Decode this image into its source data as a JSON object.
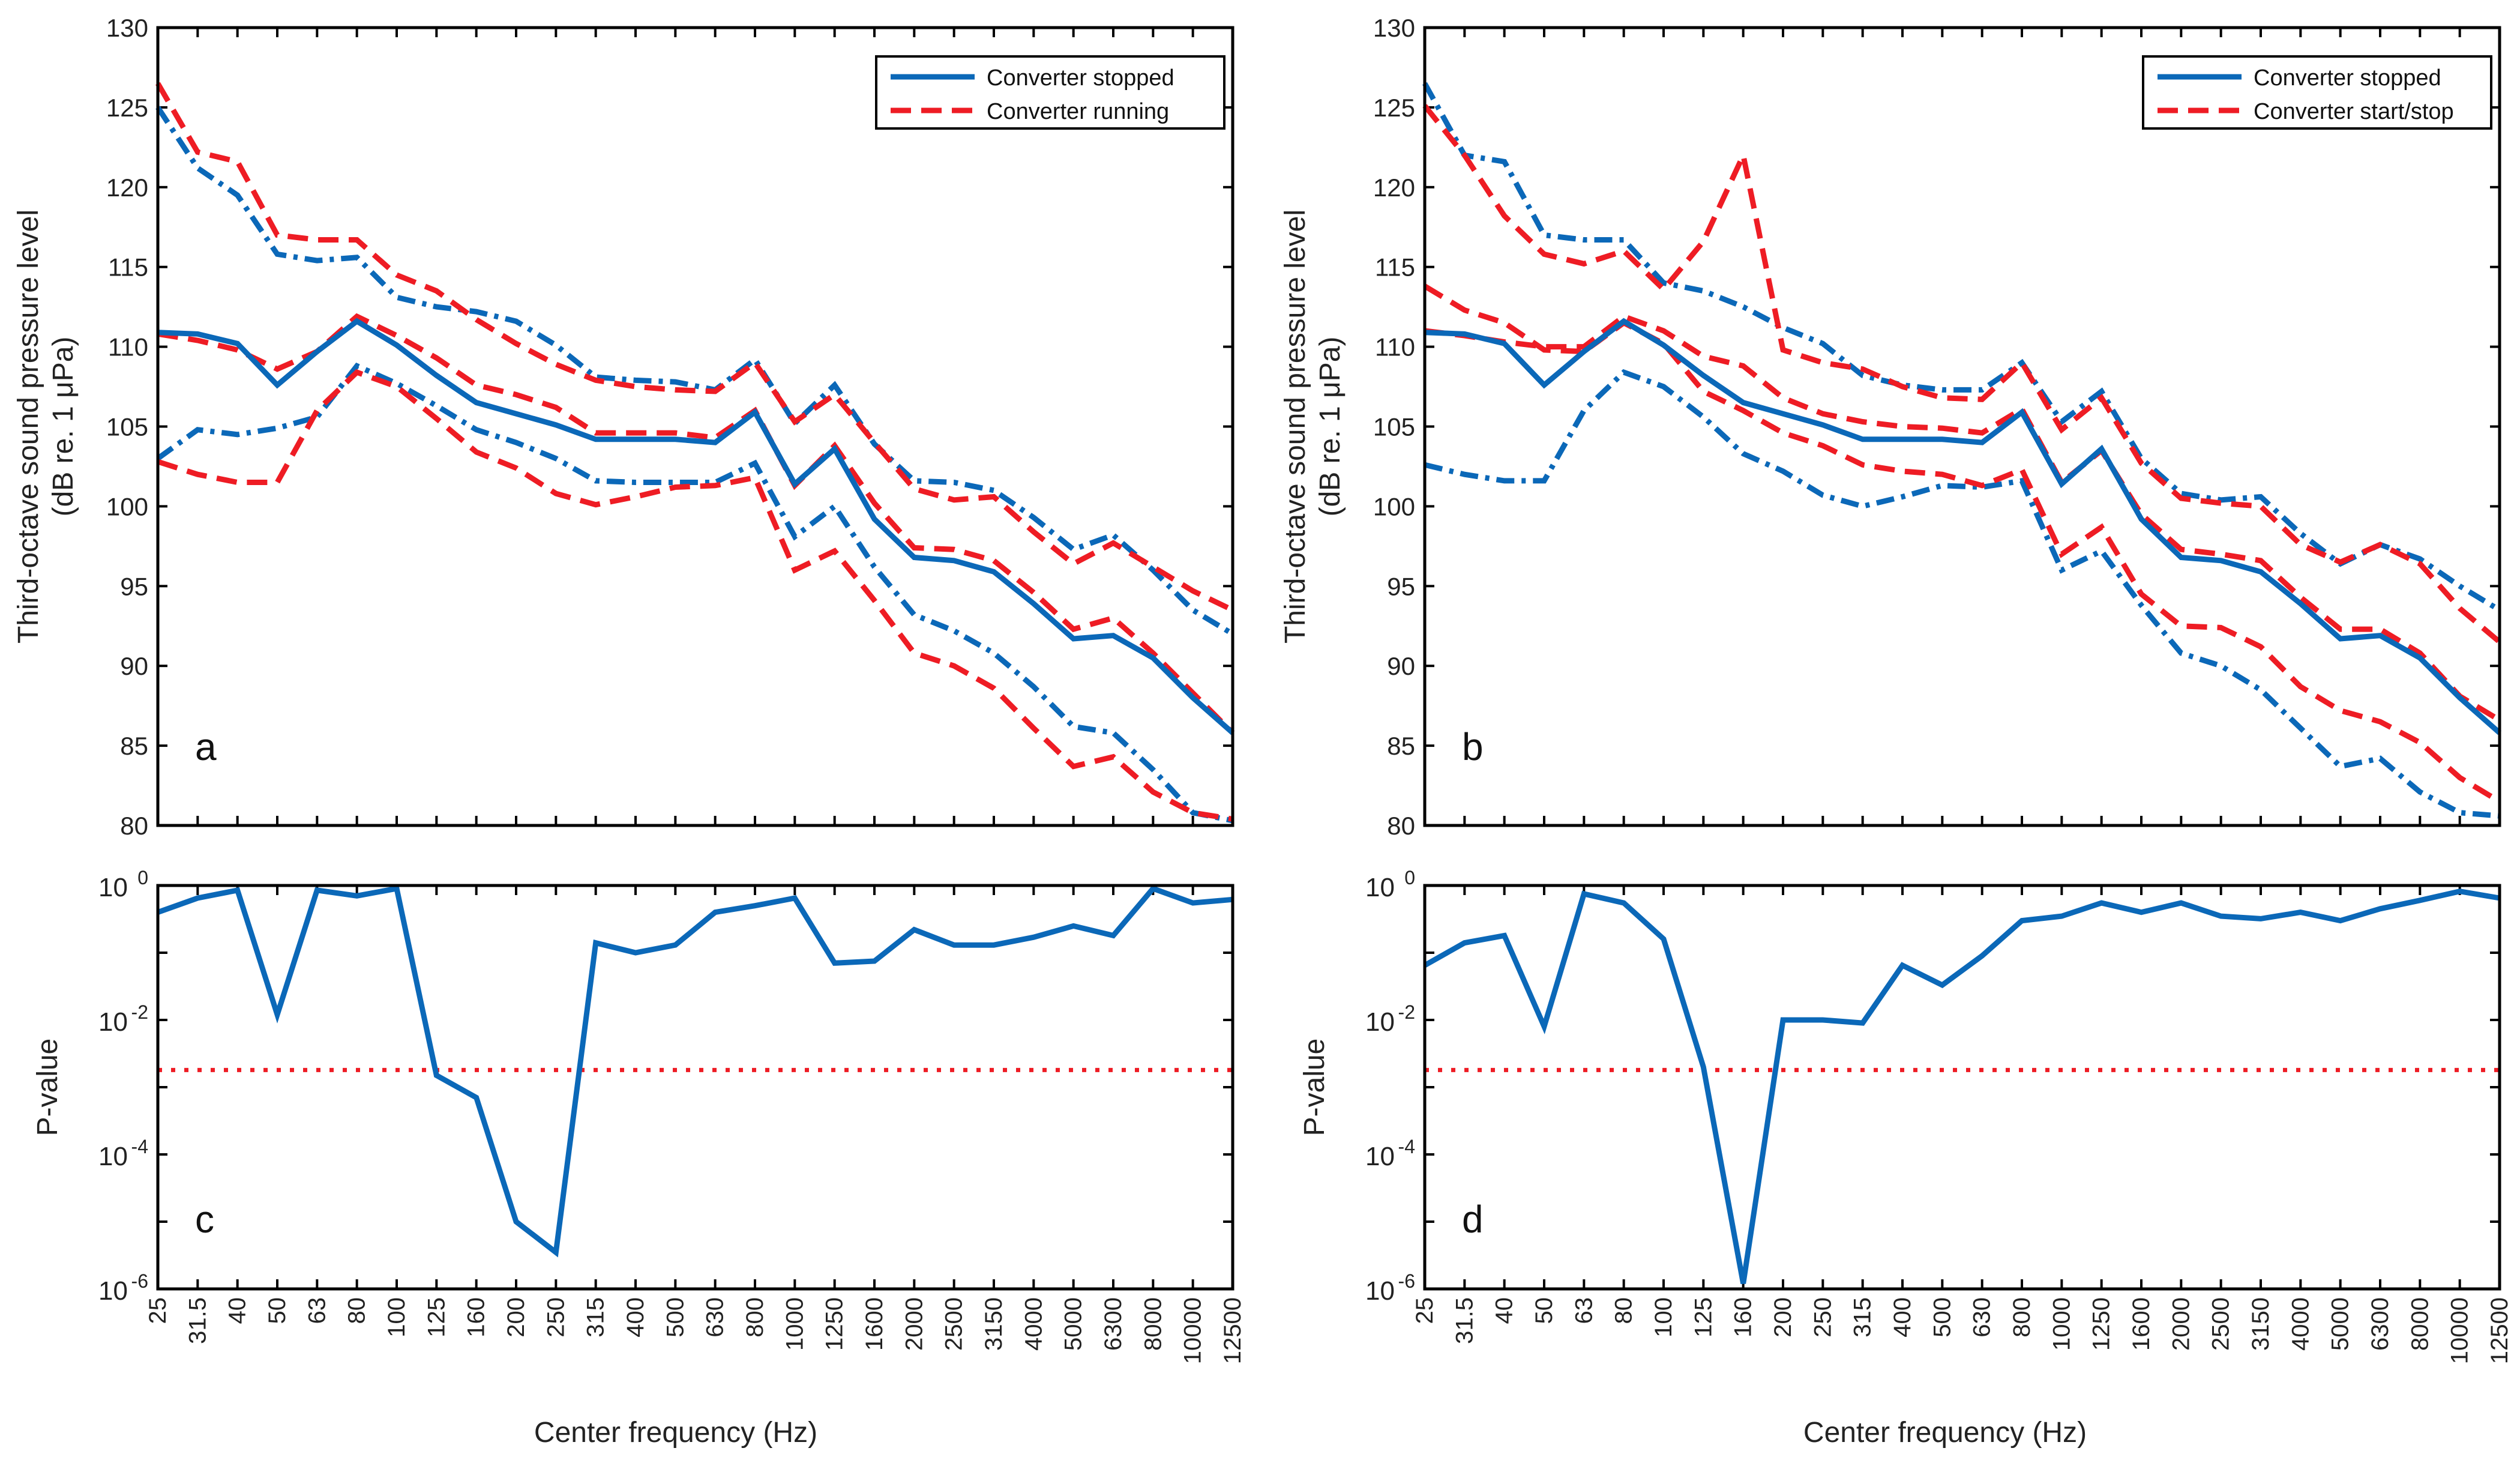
{
  "figure": {
    "xlabel": "Center frequency (Hz)",
    "ylabel_spl_line1": "Third-octave sound pressure level",
    "ylabel_spl_line2": "(dB re. 1  μPa)",
    "ylabel_p": "P-value",
    "colors": {
      "blue": "#0b68b8",
      "red": "#ee1c24",
      "axis": "#000000"
    }
  },
  "chart_data": [
    {
      "panel": "a",
      "type": "line",
      "categories": [
        "25",
        "31.5",
        "40",
        "50",
        "63",
        "80",
        "100",
        "125",
        "160",
        "200",
        "250",
        "315",
        "400",
        "500",
        "630",
        "800",
        "1000",
        "1250",
        "1600",
        "2000",
        "2500",
        "3150",
        "4000",
        "5000",
        "6300",
        "8000",
        "10000",
        "12500"
      ],
      "ylim": [
        80,
        130
      ],
      "yticks": [
        80,
        85,
        90,
        95,
        100,
        105,
        110,
        115,
        120,
        125,
        130
      ],
      "legend": {
        "position": "top-right",
        "entries": [
          {
            "label": "Converter stopped",
            "color": "#0b68b8",
            "style": "solid"
          },
          {
            "label": "Converter running",
            "color": "#ee1c24",
            "style": "dashed"
          }
        ]
      },
      "series": [
        {
          "name": "Converter stopped",
          "color": "#0b68b8",
          "style": "solid",
          "values": [
            110.9,
            110.8,
            110.2,
            107.6,
            109.7,
            111.6,
            110.1,
            108.2,
            106.5,
            105.8,
            105.1,
            104.2,
            104.2,
            104.2,
            104.0,
            105.9,
            101.4,
            103.6,
            99.2,
            96.8,
            96.6,
            95.9,
            93.9,
            91.7,
            91.9,
            90.5,
            88.0,
            85.8
          ]
        },
        {
          "color": "#0b68b8",
          "style": "dashdot",
          "values": [
            125.0,
            121.2,
            119.5,
            115.8,
            115.4,
            115.6,
            113.1,
            112.5,
            112.2,
            111.6,
            110.1,
            108.1,
            107.9,
            107.8,
            107.3,
            109.2,
            105.2,
            107.6,
            103.9,
            101.6,
            101.5,
            101.0,
            99.3,
            97.3,
            98.2,
            96.0,
            93.5,
            92.0
          ]
        },
        {
          "color": "#0b68b8",
          "style": "dashdot",
          "values": [
            103.0,
            104.8,
            104.5,
            104.9,
            105.6,
            108.8,
            107.7,
            106.3,
            104.8,
            104.0,
            103.0,
            101.6,
            101.5,
            101.5,
            101.5,
            102.7,
            98.1,
            100.0,
            96.2,
            93.2,
            92.2,
            90.8,
            88.7,
            86.2,
            85.8,
            83.5,
            80.8,
            80.3
          ]
        },
        {
          "name": "Converter running",
          "color": "#ee1c24",
          "style": "dashed",
          "values": [
            110.8,
            110.4,
            109.8,
            108.6,
            109.7,
            111.9,
            110.7,
            109.3,
            107.6,
            107.0,
            106.2,
            104.6,
            104.6,
            104.6,
            104.3,
            106.0,
            101.3,
            103.8,
            100.2,
            97.4,
            97.3,
            96.6,
            94.6,
            92.3,
            93.0,
            90.8,
            88.3,
            85.8
          ]
        },
        {
          "color": "#ee1c24",
          "style": "dashed",
          "values": [
            126.5,
            122.2,
            121.6,
            117.0,
            116.7,
            116.7,
            114.5,
            113.5,
            111.7,
            110.2,
            108.9,
            107.9,
            107.5,
            107.3,
            107.2,
            109.0,
            105.3,
            107.0,
            104.0,
            101.1,
            100.4,
            100.6,
            98.4,
            96.4,
            97.7,
            96.2,
            94.7,
            93.5
          ]
        },
        {
          "color": "#ee1c24",
          "style": "dashed",
          "values": [
            102.8,
            102.0,
            101.5,
            101.5,
            106.0,
            108.4,
            107.5,
            105.5,
            103.4,
            102.4,
            100.8,
            100.1,
            100.6,
            101.2,
            101.3,
            101.8,
            96.0,
            97.2,
            94.1,
            90.8,
            90.0,
            88.6,
            86.1,
            83.7,
            84.3,
            82.1,
            80.8,
            80.4
          ]
        }
      ]
    },
    {
      "panel": "b",
      "type": "line",
      "categories": [
        "25",
        "31.5",
        "40",
        "50",
        "63",
        "80",
        "100",
        "125",
        "160",
        "200",
        "250",
        "315",
        "400",
        "500",
        "630",
        "800",
        "1000",
        "1250",
        "1600",
        "2000",
        "2500",
        "3150",
        "4000",
        "5000",
        "6300",
        "8000",
        "10000",
        "12500"
      ],
      "ylim": [
        80,
        130
      ],
      "yticks": [
        80,
        85,
        90,
        95,
        100,
        105,
        110,
        115,
        120,
        125,
        130
      ],
      "legend": {
        "position": "top-right",
        "entries": [
          {
            "label": "Converter stopped",
            "color": "#0b68b8",
            "style": "solid"
          },
          {
            "label": "Converter start/stop",
            "color": "#ee1c24",
            "style": "dashed"
          }
        ]
      },
      "series": [
        {
          "name": "Converter stopped",
          "color": "#0b68b8",
          "style": "solid",
          "values": [
            110.9,
            110.8,
            110.2,
            107.6,
            109.7,
            111.6,
            110.1,
            108.2,
            106.5,
            105.8,
            105.1,
            104.2,
            104.2,
            104.2,
            104.0,
            105.9,
            101.4,
            103.6,
            99.2,
            96.8,
            96.6,
            95.9,
            93.9,
            91.7,
            91.9,
            90.5,
            88.0,
            85.8
          ]
        },
        {
          "color": "#0b68b8",
          "style": "dashdot",
          "values": [
            126.5,
            122.0,
            121.6,
            117.0,
            116.7,
            116.7,
            114.0,
            113.5,
            112.5,
            111.2,
            110.2,
            108.2,
            107.6,
            107.3,
            107.3,
            109.0,
            105.3,
            107.2,
            103.0,
            100.8,
            100.4,
            100.6,
            98.3,
            96.4,
            97.6,
            96.7,
            95.0,
            93.5
          ]
        },
        {
          "color": "#0b68b8",
          "style": "dashdot",
          "values": [
            102.6,
            102.0,
            101.6,
            101.6,
            106.0,
            108.4,
            107.5,
            105.6,
            103.3,
            102.2,
            100.7,
            100.0,
            100.6,
            101.3,
            101.2,
            101.6,
            96.0,
            97.2,
            93.8,
            90.8,
            90.0,
            88.5,
            86.1,
            83.7,
            84.2,
            82.1,
            80.8,
            80.6
          ]
        },
        {
          "name": "Converter start/stop",
          "color": "#ee1c24",
          "style": "dashed",
          "values": [
            111.0,
            110.7,
            110.3,
            110.0,
            110.0,
            111.9,
            111.0,
            109.4,
            108.8,
            106.8,
            105.8,
            105.3,
            105.0,
            104.9,
            104.6,
            106.1,
            101.5,
            103.5,
            99.5,
            97.3,
            97.0,
            96.6,
            94.3,
            92.3,
            92.3,
            90.8,
            88.1,
            86.6
          ]
        },
        {
          "color": "#ee1c24",
          "style": "dashed",
          "values": [
            125.1,
            122.0,
            118.2,
            115.8,
            115.2,
            116.0,
            113.6,
            116.6,
            122.0,
            109.8,
            109.0,
            108.6,
            107.5,
            106.8,
            106.7,
            109.0,
            104.8,
            106.8,
            102.7,
            100.5,
            100.2,
            100.0,
            97.6,
            96.5,
            97.6,
            96.4,
            93.6,
            91.5
          ]
        },
        {
          "color": "#ee1c24",
          "style": "dashed",
          "values": [
            113.8,
            112.3,
            111.5,
            109.8,
            109.7,
            111.5,
            110.2,
            107.2,
            106.0,
            104.6,
            103.8,
            102.6,
            102.2,
            102.0,
            101.3,
            102.3,
            97.0,
            98.7,
            94.5,
            92.5,
            92.4,
            91.2,
            88.7,
            87.2,
            86.5,
            85.2,
            83.0,
            81.5
          ]
        }
      ]
    },
    {
      "panel": "c",
      "type": "line",
      "categories": [
        "25",
        "31.5",
        "40",
        "50",
        "63",
        "80",
        "100",
        "125",
        "160",
        "200",
        "250",
        "315",
        "400",
        "500",
        "630",
        "800",
        "1000",
        "1250",
        "1600",
        "2000",
        "2500",
        "3150",
        "4000",
        "5000",
        "6300",
        "8000",
        "10000",
        "12500"
      ],
      "ylabel": "P-value",
      "yscale": "log",
      "ylim": [
        1e-06,
        1
      ],
      "yticks": [
        {
          "base": "10",
          "exp": "0",
          "value": 1
        },
        {
          "base": "10",
          "exp": "-2",
          "value": 0.01
        },
        {
          "base": "10",
          "exp": "-4",
          "value": 0.0001
        },
        {
          "base": "10",
          "exp": "-6",
          "value": 1e-06
        }
      ],
      "threshold": {
        "value": 0.0018,
        "color": "#ee1c24",
        "style": "dotted"
      },
      "series": [
        {
          "color": "#0b68b8",
          "style": "solid",
          "values": [
            0.4,
            0.65,
            0.85,
            0.012,
            0.85,
            0.7,
            0.9,
            0.0015,
            0.0007,
            1e-05,
            3.5e-06,
            0.14,
            0.1,
            0.13,
            0.4,
            0.5,
            0.65,
            0.07,
            0.075,
            0.22,
            0.13,
            0.13,
            0.17,
            0.25,
            0.18,
            0.9,
            0.55,
            0.62
          ]
        }
      ]
    },
    {
      "panel": "d",
      "type": "line",
      "categories": [
        "25",
        "31.5",
        "40",
        "50",
        "63",
        "80",
        "100",
        "125",
        "160",
        "200",
        "250",
        "315",
        "400",
        "500",
        "630",
        "800",
        "1000",
        "1250",
        "1600",
        "2000",
        "2500",
        "3150",
        "4000",
        "5000",
        "6300",
        "8000",
        "10000",
        "12500"
      ],
      "ylabel": "P-value",
      "yscale": "log",
      "ylim": [
        1e-06,
        1
      ],
      "yticks": [
        {
          "base": "10",
          "exp": "0",
          "value": 1
        },
        {
          "base": "10",
          "exp": "-2",
          "value": 0.01
        },
        {
          "base": "10",
          "exp": "-4",
          "value": 0.0001
        },
        {
          "base": "10",
          "exp": "-6",
          "value": 1e-06
        }
      ],
      "threshold": {
        "value": 0.0018,
        "color": "#ee1c24",
        "style": "dotted"
      },
      "series": [
        {
          "color": "#0b68b8",
          "style": "solid",
          "values": [
            0.065,
            0.14,
            0.18,
            0.008,
            0.75,
            0.55,
            0.16,
            0.002,
            1.2e-06,
            0.01,
            0.01,
            0.009,
            0.065,
            0.033,
            0.09,
            0.3,
            0.35,
            0.55,
            0.4,
            0.55,
            0.35,
            0.32,
            0.4,
            0.3,
            0.45,
            0.6,
            0.82,
            0.65
          ]
        }
      ]
    }
  ]
}
